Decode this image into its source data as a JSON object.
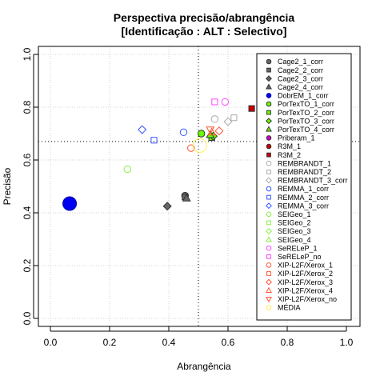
{
  "chart_data": {
    "type": "scatter",
    "title": "Perspectiva precisão/abrangência",
    "subtitle": "[Identificação : ALT : Selectivo]",
    "xlabel": "Abrangência",
    "ylabel": "Precisão",
    "xlim": [
      0,
      1
    ],
    "ylim": [
      0,
      1
    ],
    "xticks": [
      "0.0",
      "0.2",
      "0.4",
      "0.6",
      "0.8",
      "1.0"
    ],
    "yticks": [
      "0.0",
      "0.2",
      "0.4",
      "0.6",
      "0.8",
      "1.0"
    ],
    "grid": true,
    "legend_position": "top-right",
    "reference_lines": {
      "x": 0.5,
      "y": 0.67
    },
    "series": [
      {
        "name": "Cage2_1_corr",
        "shape": "circle",
        "color": "#666666",
        "filled": true,
        "points": [
          [
            0.455,
            0.465
          ]
        ]
      },
      {
        "name": "Cage2_2_corr",
        "shape": "square",
        "color": "#666666",
        "filled": true,
        "points": [
          [
            0.455,
            0.46
          ]
        ]
      },
      {
        "name": "Cage2_3_corr",
        "shape": "diamond",
        "color": "#666666",
        "filled": true,
        "points": [
          [
            0.395,
            0.425
          ]
        ]
      },
      {
        "name": "Cage2_4_corr",
        "shape": "triangle",
        "color": "#666666",
        "filled": true,
        "points": [
          [
            0.46,
            0.455
          ]
        ]
      },
      {
        "name": "DobrEM_1_corr",
        "shape": "circle",
        "color": "#0000ee",
        "filled": true,
        "size": "large",
        "points": [
          [
            0.065,
            0.435
          ]
        ]
      },
      {
        "name": "PorTexTO_1_corr",
        "shape": "circle",
        "color": "#66ff00",
        "filled": true,
        "points": [
          [
            0.51,
            0.7
          ]
        ]
      },
      {
        "name": "PorTexTO_2_corr",
        "shape": "square",
        "color": "#66ff00",
        "filled": true,
        "points": [
          [
            0.545,
            0.685
          ]
        ]
      },
      {
        "name": "PorTexTO_3_corr",
        "shape": "diamond",
        "color": "#66ff00",
        "filled": true,
        "points": [
          [
            0.55,
            0.69
          ]
        ]
      },
      {
        "name": "PorTexTO_4_corr",
        "shape": "triangle",
        "color": "#66ff00",
        "filled": true,
        "points": [
          [
            0.54,
            0.695
          ]
        ]
      },
      {
        "name": "Priberam_1",
        "shape": "circle",
        "color": "#cc00cc",
        "filled": true,
        "points": []
      },
      {
        "name": "R3M_1",
        "shape": "circle",
        "color": "#cc0000",
        "filled": true,
        "points": []
      },
      {
        "name": "R3M_2",
        "shape": "square",
        "color": "#cc0000",
        "filled": true,
        "points": [
          [
            0.68,
            0.795
          ]
        ]
      },
      {
        "name": "REMBRANDT_1",
        "shape": "circle",
        "color": "#aaaaaa",
        "filled": false,
        "points": [
          [
            0.555,
            0.755
          ]
        ]
      },
      {
        "name": "REMBRANDT_2",
        "shape": "square",
        "color": "#aaaaaa",
        "filled": false,
        "points": [
          [
            0.62,
            0.76
          ]
        ]
      },
      {
        "name": "REMBRANDT_3_corr",
        "shape": "diamond",
        "color": "#aaaaaa",
        "filled": false,
        "points": [
          [
            0.6,
            0.745
          ]
        ]
      },
      {
        "name": "REMMA_1_corr",
        "shape": "circle",
        "color": "#3355ff",
        "filled": false,
        "points": [
          [
            0.45,
            0.705
          ]
        ]
      },
      {
        "name": "REMMA_2_corr",
        "shape": "square",
        "color": "#3355ff",
        "filled": false,
        "points": [
          [
            0.35,
            0.675
          ]
        ]
      },
      {
        "name": "REMMA_3_corr",
        "shape": "diamond",
        "color": "#3355ff",
        "filled": false,
        "points": [
          [
            0.31,
            0.715
          ]
        ]
      },
      {
        "name": "SEIGeo_1",
        "shape": "circle",
        "color": "#88ee44",
        "filled": false,
        "points": [
          [
            0.26,
            0.565
          ]
        ]
      },
      {
        "name": "SEIGeo_2",
        "shape": "square",
        "color": "#88ee44",
        "filled": false,
        "points": []
      },
      {
        "name": "SEIGeo_3",
        "shape": "diamond",
        "color": "#88ee44",
        "filled": false,
        "points": []
      },
      {
        "name": "SEIGeo_4",
        "shape": "triangle",
        "color": "#88ee44",
        "filled": false,
        "points": []
      },
      {
        "name": "SeRELeP_1",
        "shape": "circle",
        "color": "#ff44ff",
        "filled": false,
        "points": [
          [
            0.59,
            0.82
          ]
        ]
      },
      {
        "name": "SeRELeP_no",
        "shape": "square",
        "color": "#ff44ff",
        "filled": false,
        "points": [
          [
            0.555,
            0.82
          ]
        ]
      },
      {
        "name": "XIP-L2F/Xerox_1",
        "shape": "circle",
        "color": "#ff5533",
        "filled": false,
        "points": [
          [
            0.475,
            0.645
          ]
        ]
      },
      {
        "name": "XIP-L2F/Xerox_2",
        "shape": "square",
        "color": "#ff5533",
        "filled": false,
        "points": []
      },
      {
        "name": "XIP-L2F/Xerox_3",
        "shape": "diamond",
        "color": "#ff5533",
        "filled": false,
        "points": [
          [
            0.57,
            0.71
          ]
        ]
      },
      {
        "name": "XIP-L2F/Xerox_4",
        "shape": "triangle",
        "color": "#ff5533",
        "filled": false,
        "points": [
          [
            0.545,
            0.705
          ]
        ]
      },
      {
        "name": "XIP-L2F/Xerox_no",
        "shape": "triangle-down",
        "color": "#ff5533",
        "filled": false,
        "points": [
          [
            0.54,
            0.715
          ]
        ]
      },
      {
        "name": "MÉDIA",
        "shape": "circle",
        "color": "#ffee55",
        "filled": false,
        "size": "large",
        "points": [
          [
            0.505,
            0.655
          ]
        ]
      }
    ]
  }
}
